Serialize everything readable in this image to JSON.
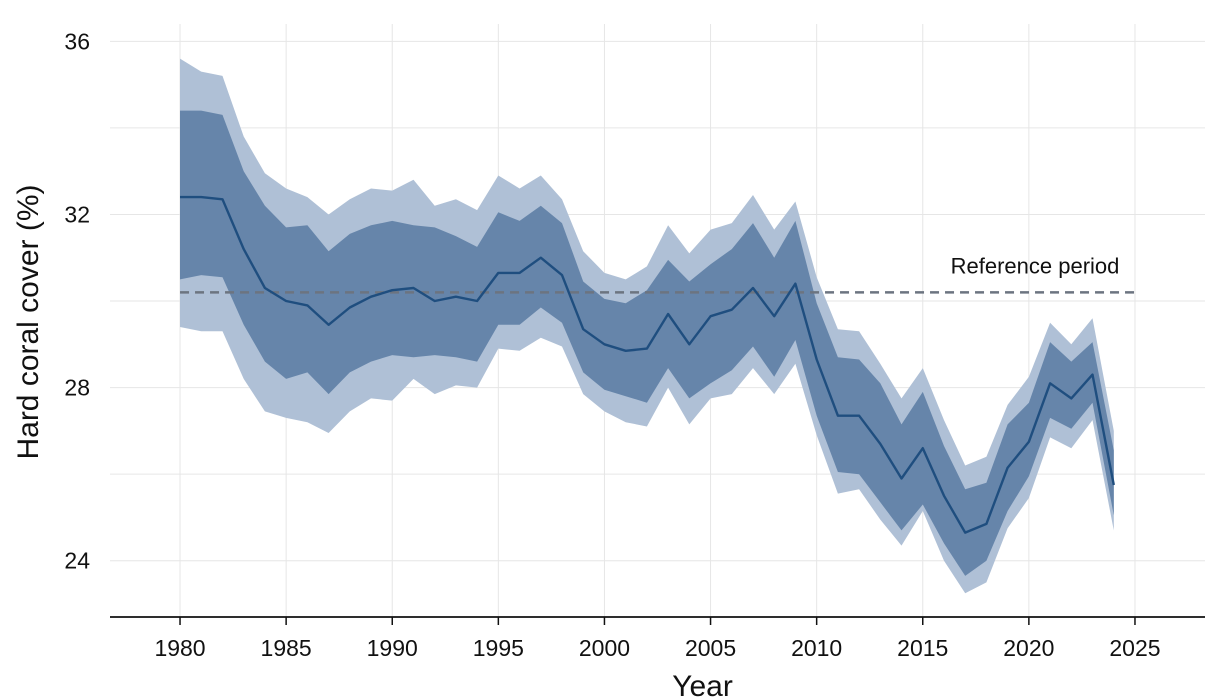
{
  "chart_data": {
    "type": "area",
    "xlabel": "Year",
    "ylabel": "Hard coral cover (%)",
    "xlim": [
      1976.7,
      2028.3
    ],
    "ylim": [
      22.7,
      36.4
    ],
    "x_ticks": [
      1980,
      1985,
      1990,
      1995,
      2000,
      2005,
      2010,
      2015,
      2020,
      2025
    ],
    "y_ticks": [
      24,
      28,
      32,
      36
    ],
    "grid": true,
    "reference_line": {
      "label": "Reference period",
      "y": 30.2,
      "x_range": [
        1980,
        2025
      ]
    },
    "x": [
      1980,
      1981,
      1982,
      1983,
      1984,
      1985,
      1986,
      1987,
      1988,
      1989,
      1990,
      1991,
      1992,
      1993,
      1994,
      1995,
      1996,
      1997,
      1998,
      1999,
      2000,
      2001,
      2002,
      2003,
      2004,
      2005,
      2006,
      2007,
      2008,
      2009,
      2010,
      2011,
      2012,
      2013,
      2014,
      2015,
      2016,
      2017,
      2018,
      2019,
      2020,
      2021,
      2022,
      2023,
      2024
    ],
    "series": [
      {
        "role": "mean",
        "color": "#1f4e7f",
        "values": [
          32.4,
          32.4,
          32.35,
          31.2,
          30.3,
          30.0,
          29.9,
          29.45,
          29.85,
          30.1,
          30.25,
          30.3,
          30.0,
          30.1,
          30.0,
          30.65,
          30.65,
          31.0,
          30.6,
          29.35,
          29.0,
          28.85,
          28.9,
          29.7,
          29.0,
          29.65,
          29.8,
          30.3,
          29.65,
          30.4,
          28.65,
          27.35,
          27.35,
          26.7,
          25.9,
          26.6,
          25.5,
          24.65,
          24.85,
          26.15,
          26.75,
          28.1,
          27.75,
          28.3,
          25.75
        ]
      },
      {
        "role": "inner_band",
        "color": "#6685aa",
        "lower": [
          30.5,
          30.6,
          30.55,
          29.45,
          28.6,
          28.2,
          28.35,
          27.85,
          28.35,
          28.6,
          28.75,
          28.7,
          28.75,
          28.7,
          28.6,
          29.45,
          29.45,
          29.85,
          29.5,
          28.35,
          27.95,
          27.8,
          27.65,
          28.45,
          27.75,
          28.1,
          28.4,
          28.95,
          28.25,
          29.1,
          27.35,
          26.05,
          26.0,
          25.35,
          24.7,
          25.3,
          24.4,
          23.65,
          24.0,
          25.15,
          25.95,
          27.3,
          27.05,
          27.65,
          25.05
        ],
        "upper": [
          34.4,
          34.4,
          34.3,
          33.0,
          32.2,
          31.7,
          31.75,
          31.15,
          31.55,
          31.75,
          31.85,
          31.75,
          31.7,
          31.5,
          31.25,
          32.05,
          31.85,
          32.2,
          31.8,
          30.45,
          30.05,
          29.95,
          30.25,
          30.95,
          30.45,
          30.85,
          31.2,
          31.8,
          31.0,
          31.85,
          29.95,
          28.7,
          28.65,
          28.1,
          27.15,
          27.9,
          26.65,
          25.65,
          25.8,
          27.15,
          27.65,
          29.05,
          28.6,
          29.05,
          26.55
        ]
      },
      {
        "role": "outer_band",
        "color": "#afc0d6",
        "lower": [
          29.4,
          29.3,
          29.3,
          28.2,
          27.45,
          27.3,
          27.2,
          26.95,
          27.45,
          27.75,
          27.7,
          28.2,
          27.85,
          28.05,
          28.0,
          28.9,
          28.85,
          29.15,
          28.95,
          27.85,
          27.45,
          27.2,
          27.1,
          28.0,
          27.15,
          27.75,
          27.85,
          28.45,
          27.85,
          28.55,
          26.9,
          25.55,
          25.65,
          24.95,
          24.35,
          25.15,
          24.0,
          23.25,
          23.5,
          24.75,
          25.45,
          26.85,
          26.6,
          27.25,
          24.7
        ],
        "upper": [
          35.6,
          35.3,
          35.2,
          33.8,
          32.95,
          32.6,
          32.4,
          32.0,
          32.35,
          32.6,
          32.55,
          32.8,
          32.2,
          32.35,
          32.1,
          32.9,
          32.6,
          32.9,
          32.35,
          31.15,
          30.65,
          30.5,
          30.8,
          31.75,
          31.1,
          31.65,
          31.8,
          32.45,
          31.65,
          32.3,
          30.55,
          29.35,
          29.3,
          28.55,
          27.75,
          28.45,
          27.25,
          26.2,
          26.4,
          27.6,
          28.25,
          29.5,
          29.0,
          29.6,
          27.0
        ]
      }
    ]
  }
}
